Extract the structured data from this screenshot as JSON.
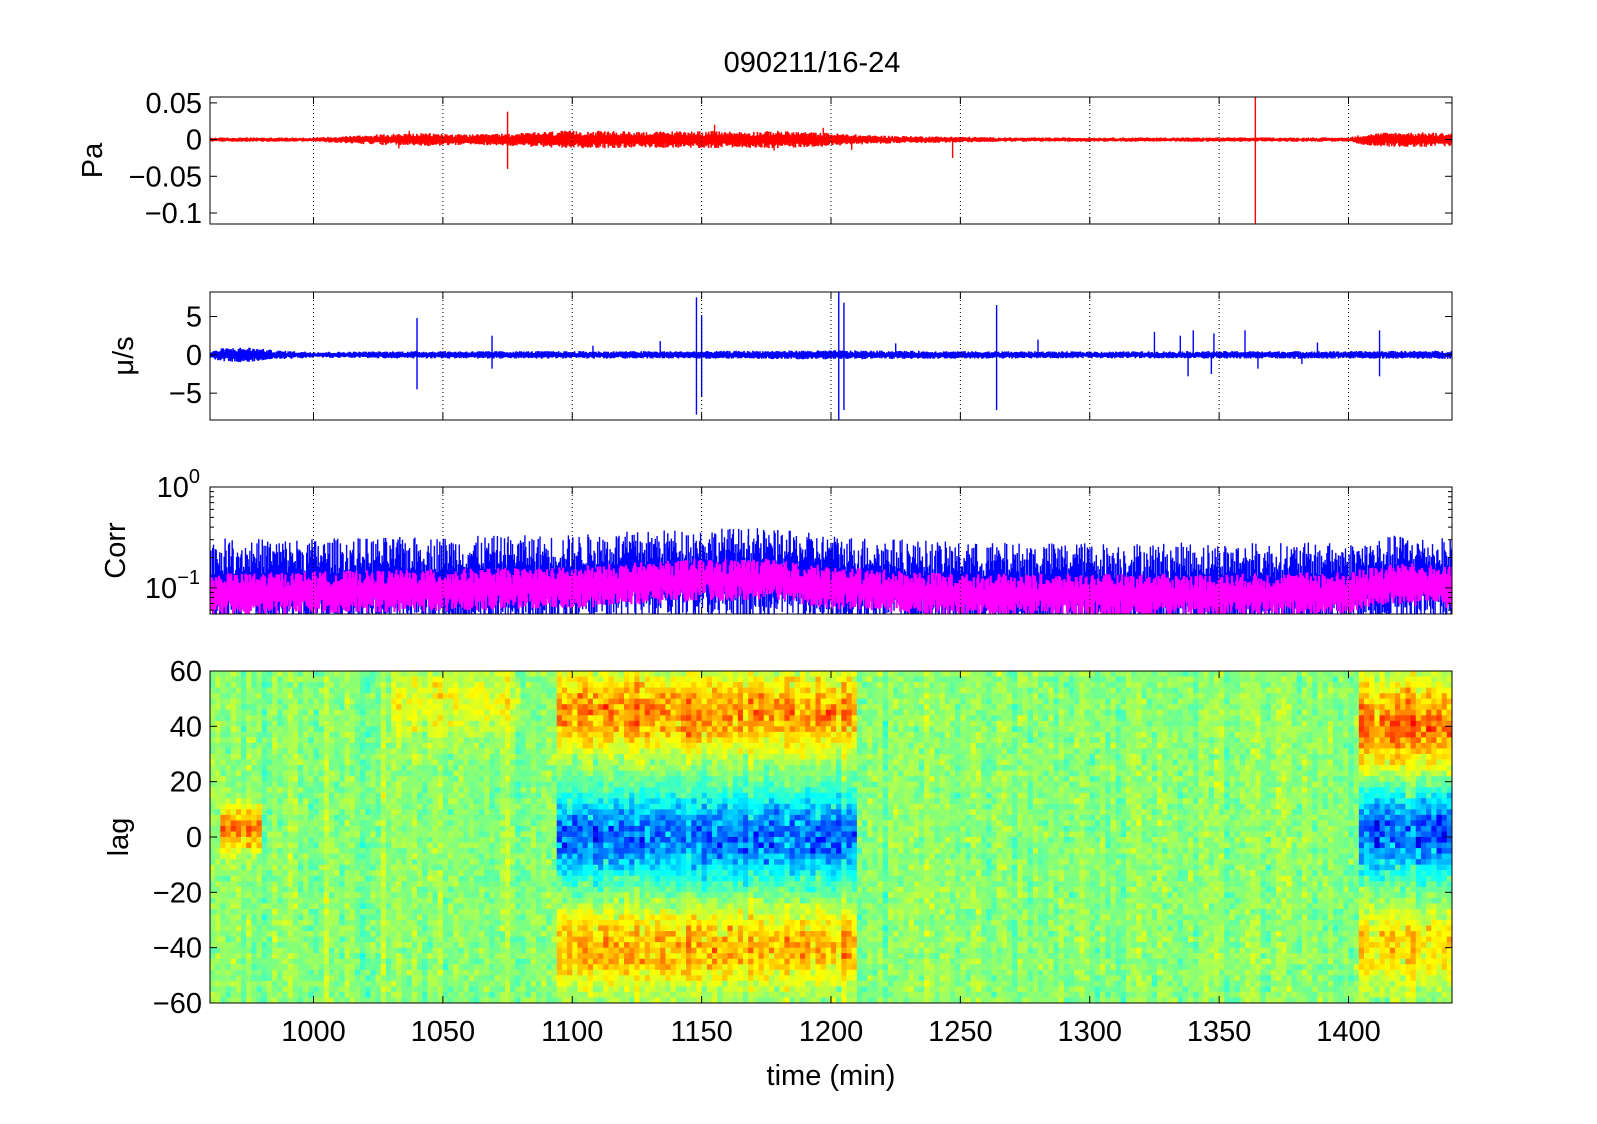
{
  "figure": {
    "title": "090211/16-24"
  },
  "chart_data": [
    {
      "type": "line",
      "panel": "pressure",
      "ylabel": "Pa",
      "xlim": [
        960,
        1440
      ],
      "ylim": [
        -0.115,
        0.058
      ],
      "yticks": [
        0.05,
        0,
        -0.05,
        -0.1
      ],
      "ytick_labels": [
        "0.05",
        "0",
        "−0.05",
        "−0.1"
      ],
      "xticks": [
        1000,
        1050,
        1100,
        1150,
        1200,
        1250,
        1300,
        1350,
        1400
      ],
      "grid": true,
      "series": [
        {
          "color": "#ff0000",
          "envelope": [
            [
              960,
              0.003
            ],
            [
              980,
              0.003
            ],
            [
              1000,
              0.003
            ],
            [
              1012,
              0.005
            ],
            [
              1030,
              0.008
            ],
            [
              1045,
              0.009
            ],
            [
              1060,
              0.007
            ],
            [
              1080,
              0.009
            ],
            [
              1095,
              0.012
            ],
            [
              1110,
              0.012
            ],
            [
              1130,
              0.011
            ],
            [
              1150,
              0.012
            ],
            [
              1165,
              0.011
            ],
            [
              1180,
              0.012
            ],
            [
              1200,
              0.009
            ],
            [
              1215,
              0.006
            ],
            [
              1230,
              0.005
            ],
            [
              1250,
              0.004
            ],
            [
              1270,
              0.003
            ],
            [
              1300,
              0.003
            ],
            [
              1330,
              0.003
            ],
            [
              1360,
              0.003
            ],
            [
              1390,
              0.003
            ],
            [
              1400,
              0.003
            ],
            [
              1405,
              0.007
            ],
            [
              1415,
              0.01
            ],
            [
              1430,
              0.01
            ],
            [
              1440,
              0.009
            ]
          ],
          "spikes": [
            [
              1075,
              -0.04
            ],
            [
              1075,
              0.038
            ],
            [
              1033,
              -0.012
            ],
            [
              1037,
              0.012
            ],
            [
              1155,
              0.02
            ],
            [
              1178,
              -0.015
            ],
            [
              1197,
              0.016
            ],
            [
              1208,
              -0.014
            ],
            [
              1247,
              -0.025
            ],
            [
              1364,
              -0.115
            ],
            [
              1364,
              0.058
            ]
          ]
        }
      ]
    },
    {
      "type": "line",
      "panel": "velocity",
      "ylabel": "μ/s",
      "xlim": [
        960,
        1440
      ],
      "ylim": [
        -8.5,
        8.2
      ],
      "yticks": [
        5,
        0,
        -5
      ],
      "ytick_labels": [
        "5",
        "0",
        "−5"
      ],
      "xticks": [
        1000,
        1050,
        1100,
        1150,
        1200,
        1250,
        1300,
        1350,
        1400
      ],
      "grid": true,
      "series": [
        {
          "color": "#0000ff",
          "envelope": [
            [
              960,
              0.4
            ],
            [
              965,
              0.9
            ],
            [
              975,
              1.0
            ],
            [
              985,
              0.6
            ],
            [
              1000,
              0.4
            ],
            [
              1040,
              0.5
            ],
            [
              1100,
              0.5
            ],
            [
              1150,
              0.5
            ],
            [
              1200,
              0.6
            ],
            [
              1250,
              0.5
            ],
            [
              1300,
              0.45
            ],
            [
              1350,
              0.5
            ],
            [
              1400,
              0.5
            ],
            [
              1440,
              0.55
            ]
          ],
          "spikes": [
            [
              1040,
              4.8
            ],
            [
              1040,
              -4.5
            ],
            [
              1069,
              2.5
            ],
            [
              1069,
              -1.8
            ],
            [
              1108,
              1.2
            ],
            [
              1134,
              1.8
            ],
            [
              1148,
              7.5
            ],
            [
              1148,
              -7.8
            ],
            [
              1150,
              5.2
            ],
            [
              1150,
              -5.5
            ],
            [
              1203,
              8.2
            ],
            [
              1203,
              -8.5
            ],
            [
              1205,
              6.8
            ],
            [
              1205,
              -7.2
            ],
            [
              1225,
              1.5
            ],
            [
              1264,
              6.5
            ],
            [
              1264,
              -7.2
            ],
            [
              1280,
              2.0
            ],
            [
              1325,
              3.0
            ],
            [
              1335,
              2.5
            ],
            [
              1338,
              -2.8
            ],
            [
              1340,
              3.2
            ],
            [
              1347,
              -2.5
            ],
            [
              1348,
              2.8
            ],
            [
              1360,
              3.2
            ],
            [
              1365,
              -1.8
            ],
            [
              1388,
              1.6
            ],
            [
              1382,
              -1.2
            ],
            [
              1412,
              3.2
            ],
            [
              1412,
              -2.8
            ]
          ]
        }
      ]
    },
    {
      "type": "line",
      "panel": "correlation",
      "ylabel": "Corr",
      "yscale": "log",
      "xlim": [
        960,
        1440
      ],
      "ylim": [
        0.055,
        1.0
      ],
      "yticks": [
        1,
        0.1
      ],
      "ytick_labels": [
        {
          "base": "10",
          "exp": "0"
        },
        {
          "base": "10",
          "exp": "−1"
        }
      ],
      "xticks": [
        1000,
        1050,
        1100,
        1150,
        1200,
        1250,
        1300,
        1350,
        1400
      ],
      "grid": true,
      "series": [
        {
          "color": "#0000ff",
          "baseline": [
            [
              960,
              0.11
            ],
            [
              1000,
              0.11
            ],
            [
              1050,
              0.115
            ],
            [
              1100,
              0.12
            ],
            [
              1150,
              0.14
            ],
            [
              1170,
              0.14
            ],
            [
              1200,
              0.12
            ],
            [
              1250,
              0.1
            ],
            [
              1300,
              0.1
            ],
            [
              1350,
              0.1
            ],
            [
              1400,
              0.1
            ],
            [
              1420,
              0.12
            ],
            [
              1440,
              0.11
            ]
          ],
          "spread_decades": 0.5,
          "peaks": [
            [
              1100,
              0.28
            ],
            [
              1155,
              0.3
            ],
            [
              1168,
              0.33
            ],
            [
              1200,
              0.28
            ],
            [
              1253,
              0.27
            ],
            [
              1296,
              0.25
            ],
            [
              1392,
              0.26
            ],
            [
              1420,
              0.32
            ],
            [
              1075,
              0.28
            ],
            [
              1130,
              0.28
            ]
          ]
        },
        {
          "color": "#ff00ff",
          "baseline": [
            [
              960,
              0.085
            ],
            [
              1000,
              0.09
            ],
            [
              1050,
              0.095
            ],
            [
              1100,
              0.1
            ],
            [
              1150,
              0.12
            ],
            [
              1175,
              0.12
            ],
            [
              1200,
              0.1
            ],
            [
              1250,
              0.085
            ],
            [
              1300,
              0.085
            ],
            [
              1350,
              0.085
            ],
            [
              1400,
              0.09
            ],
            [
              1420,
              0.11
            ],
            [
              1440,
              0.1
            ]
          ],
          "spread_decades": 0.3,
          "peaks": []
        }
      ]
    },
    {
      "type": "heatmap",
      "panel": "lag",
      "ylabel": "lag",
      "xlabel": "time (min)",
      "xlim": [
        960,
        1440
      ],
      "ylim": [
        -60,
        60
      ],
      "yticks": [
        60,
        40,
        20,
        0,
        -20,
        -40,
        -60
      ],
      "ytick_labels": [
        "60",
        "40",
        "20",
        "0",
        "−20",
        "−40",
        "−60"
      ],
      "xticks": [
        1000,
        1050,
        1100,
        1150,
        1200,
        1250,
        1300,
        1350,
        1400
      ],
      "xtick_labels": [
        "1000",
        "1050",
        "1100",
        "1150",
        "1200",
        "1250",
        "1300",
        "1350",
        "1400"
      ],
      "colormap": "jet",
      "value_range": [
        -1,
        1
      ],
      "features": [
        {
          "x": [
            1095,
            1210
          ],
          "lag_center": 0,
          "lag_width": 15,
          "value": -0.55
        },
        {
          "x": [
            1095,
            1210
          ],
          "lag_center": 45,
          "lag_width": 14,
          "value": 0.45
        },
        {
          "x": [
            1095,
            1210
          ],
          "lag_center": -40,
          "lag_width": 14,
          "value": 0.38
        },
        {
          "x": [
            1405,
            1440
          ],
          "lag_center": 2,
          "lag_width": 15,
          "value": -0.6
        },
        {
          "x": [
            1405,
            1440
          ],
          "lag_center": 40,
          "lag_width": 16,
          "value": 0.5
        },
        {
          "x": [
            1405,
            1440
          ],
          "lag_center": -40,
          "lag_width": 14,
          "value": 0.3
        },
        {
          "x": [
            965,
            980
          ],
          "lag_center": 3,
          "lag_width": 8,
          "value": 0.45
        },
        {
          "x": [
            1030,
            1080
          ],
          "lag_center": 48,
          "lag_width": 12,
          "value": 0.2
        }
      ]
    }
  ]
}
